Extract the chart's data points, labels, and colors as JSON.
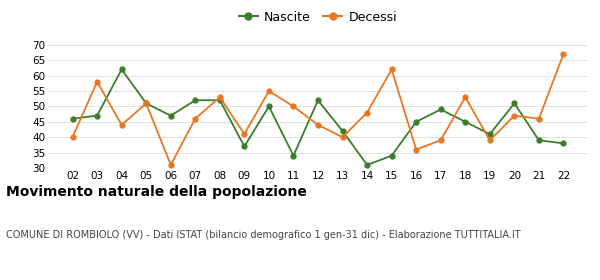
{
  "years": [
    "02",
    "03",
    "04",
    "05",
    "06",
    "07",
    "08",
    "09",
    "10",
    "11",
    "12",
    "13",
    "14",
    "15",
    "16",
    "17",
    "18",
    "19",
    "20",
    "21",
    "22"
  ],
  "nascite": [
    46,
    47,
    62,
    51,
    47,
    52,
    52,
    37,
    50,
    34,
    52,
    42,
    31,
    34,
    45,
    49,
    45,
    41,
    51,
    39,
    38
  ],
  "decessi": [
    40,
    58,
    44,
    51,
    31,
    46,
    53,
    41,
    55,
    50,
    44,
    40,
    48,
    62,
    36,
    39,
    53,
    39,
    47,
    46,
    67
  ],
  "nascite_color": "#3a7d2c",
  "decessi_color": "#e87722",
  "title": "Movimento naturale della popolazione",
  "subtitle": "COMUNE DI ROMBIOLO (VV) - Dati ISTAT (bilancio demografico 1 gen-31 dic) - Elaborazione TUTTITALIA.IT",
  "ylim": [
    30,
    70
  ],
  "yticks": [
    30,
    35,
    40,
    45,
    50,
    55,
    60,
    65,
    70
  ],
  "background_color": "#ffffff",
  "grid_color": "#e0e0e0",
  "title_fontsize": 10,
  "subtitle_fontsize": 7,
  "legend_fontsize": 9,
  "tick_fontsize": 7.5
}
